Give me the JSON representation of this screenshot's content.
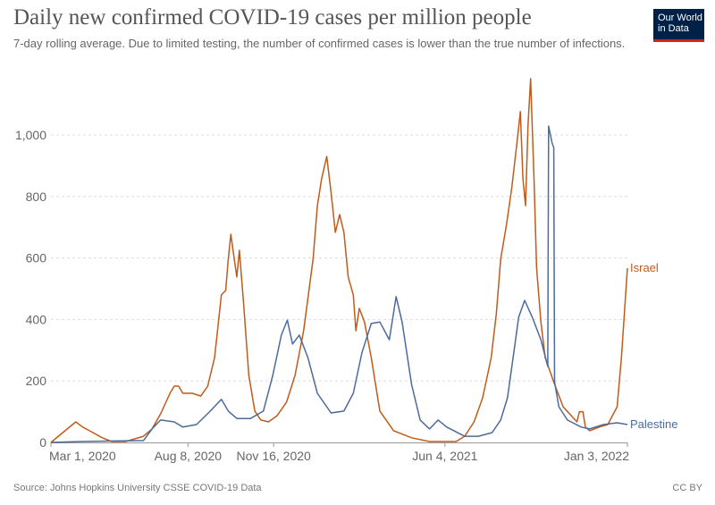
{
  "header": {
    "title": "Daily new confirmed COVID-19 cases per million people",
    "subtitle": "7-day rolling average. Due to limited testing, the number of confirmed cases is lower than the true number of infections."
  },
  "logo": {
    "line1": "Our World",
    "line2": "in Data",
    "colors": {
      "bg": "#002147",
      "bar": "#ce261e"
    }
  },
  "footer": {
    "source": "Source: Johns Hopkins University CSSE COVID-19 Data",
    "license": "CC BY"
  },
  "chart_data": {
    "type": "line",
    "title": "Daily new confirmed COVID-19 cases per million people",
    "xlim": [
      "2020-03-01",
      "2022-01-03"
    ],
    "ylim": [
      0,
      1200
    ],
    "x_ticks": [
      {
        "date": "2020-03-01",
        "label": "Mar 1, 2020"
      },
      {
        "date": "2020-08-08",
        "label": "Aug 8, 2020"
      },
      {
        "date": "2020-11-16",
        "label": "Nov 16, 2020"
      },
      {
        "date": "2021-06-04",
        "label": "Jun 4, 2021"
      },
      {
        "date": "2022-01-03",
        "label": "Jan 3, 2022"
      }
    ],
    "y_ticks": [
      {
        "value": 0,
        "label": "0"
      },
      {
        "value": 200,
        "label": "200"
      },
      {
        "value": 400,
        "label": "400"
      },
      {
        "value": 600,
        "label": "600"
      },
      {
        "value": 800,
        "label": "800"
      },
      {
        "value": 1000,
        "label": "1,000"
      }
    ],
    "grid": true,
    "legend": "inline labels at line ends",
    "series": [
      {
        "name": "Israel",
        "color": "#c15b1a",
        "points": [
          [
            "2020-03-01",
            0
          ],
          [
            "2020-03-30",
            67
          ],
          [
            "2020-04-07",
            50
          ],
          [
            "2020-04-15",
            38
          ],
          [
            "2020-04-30",
            15
          ],
          [
            "2020-05-11",
            3
          ],
          [
            "2020-05-27",
            3
          ],
          [
            "2020-06-17",
            20
          ],
          [
            "2020-06-27",
            44
          ],
          [
            "2020-07-07",
            93
          ],
          [
            "2020-07-18",
            160
          ],
          [
            "2020-07-23",
            183
          ],
          [
            "2020-07-28",
            183
          ],
          [
            "2020-08-02",
            160
          ],
          [
            "2020-08-13",
            160
          ],
          [
            "2020-08-23",
            151
          ],
          [
            "2020-08-31",
            183
          ],
          [
            "2020-09-08",
            276
          ],
          [
            "2020-09-16",
            480
          ],
          [
            "2020-09-21",
            494
          ],
          [
            "2020-09-24",
            596
          ],
          [
            "2020-09-27",
            677
          ],
          [
            "2020-10-01",
            596
          ],
          [
            "2020-10-04",
            538
          ],
          [
            "2020-10-07",
            625
          ],
          [
            "2020-10-12",
            450
          ],
          [
            "2020-10-18",
            218
          ],
          [
            "2020-10-25",
            102
          ],
          [
            "2020-11-01",
            73
          ],
          [
            "2020-11-10",
            67
          ],
          [
            "2020-11-20",
            87
          ],
          [
            "2020-12-01",
            131
          ],
          [
            "2020-12-11",
            218
          ],
          [
            "2020-12-21",
            363
          ],
          [
            "2021-01-01",
            596
          ],
          [
            "2021-01-06",
            770
          ],
          [
            "2021-01-11",
            858
          ],
          [
            "2021-01-17",
            930
          ],
          [
            "2021-01-22",
            814
          ],
          [
            "2021-01-27",
            683
          ],
          [
            "2021-02-01",
            741
          ],
          [
            "2021-02-06",
            683
          ],
          [
            "2021-02-11",
            538
          ],
          [
            "2021-02-17",
            480
          ],
          [
            "2021-02-20",
            363
          ],
          [
            "2021-02-24",
            436
          ],
          [
            "2021-03-02",
            392
          ],
          [
            "2021-03-10",
            276
          ],
          [
            "2021-03-20",
            102
          ],
          [
            "2021-04-05",
            38
          ],
          [
            "2021-04-26",
            15
          ],
          [
            "2021-05-17",
            3
          ],
          [
            "2021-06-17",
            3
          ],
          [
            "2021-06-27",
            20
          ],
          [
            "2021-07-08",
            67
          ],
          [
            "2021-07-18",
            145
          ],
          [
            "2021-07-28",
            276
          ],
          [
            "2021-08-03",
            421
          ],
          [
            "2021-08-08",
            596
          ],
          [
            "2021-08-15",
            712
          ],
          [
            "2021-08-21",
            828
          ],
          [
            "2021-08-24",
            901
          ],
          [
            "2021-08-27",
            974
          ],
          [
            "2021-08-31",
            1076
          ],
          [
            "2021-09-03",
            858
          ],
          [
            "2021-09-06",
            770
          ],
          [
            "2021-09-09",
            1032
          ],
          [
            "2021-09-12",
            1183
          ],
          [
            "2021-09-16",
            858
          ],
          [
            "2021-09-19",
            567
          ],
          [
            "2021-09-24",
            392
          ],
          [
            "2021-09-29",
            276
          ],
          [
            "2021-10-10",
            189
          ],
          [
            "2021-10-20",
            116
          ],
          [
            "2021-11-05",
            67
          ],
          [
            "2021-11-08",
            100
          ],
          [
            "2021-11-12",
            100
          ],
          [
            "2021-11-15",
            50
          ],
          [
            "2021-11-20",
            38
          ],
          [
            "2021-12-01",
            50
          ],
          [
            "2021-12-11",
            58
          ],
          [
            "2021-12-22",
            116
          ],
          [
            "2021-12-27",
            276
          ],
          [
            "2022-01-03",
            567
          ]
        ]
      },
      {
        "name": "Palestine",
        "color": "#4c6a9c",
        "points": [
          [
            "2020-03-01",
            0
          ],
          [
            "2020-04-04",
            3
          ],
          [
            "2020-06-17",
            6
          ],
          [
            "2020-06-27",
            44
          ],
          [
            "2020-07-07",
            73
          ],
          [
            "2020-07-23",
            67
          ],
          [
            "2020-08-02",
            50
          ],
          [
            "2020-08-18",
            58
          ],
          [
            "2020-09-03",
            102
          ],
          [
            "2020-09-16",
            140
          ],
          [
            "2020-09-24",
            102
          ],
          [
            "2020-10-04",
            78
          ],
          [
            "2020-10-20",
            78
          ],
          [
            "2020-11-04",
            102
          ],
          [
            "2020-11-15",
            218
          ],
          [
            "2020-11-25",
            349
          ],
          [
            "2020-12-02",
            398
          ],
          [
            "2020-12-08",
            320
          ],
          [
            "2020-12-16",
            349
          ],
          [
            "2020-12-26",
            276
          ],
          [
            "2021-01-06",
            160
          ],
          [
            "2021-01-22",
            96
          ],
          [
            "2021-02-06",
            102
          ],
          [
            "2021-02-17",
            160
          ],
          [
            "2021-02-27",
            291
          ],
          [
            "2021-03-10",
            387
          ],
          [
            "2021-03-20",
            392
          ],
          [
            "2021-03-31",
            334
          ],
          [
            "2021-04-08",
            474
          ],
          [
            "2021-04-15",
            392
          ],
          [
            "2021-04-26",
            189
          ],
          [
            "2021-05-06",
            73
          ],
          [
            "2021-05-17",
            44
          ],
          [
            "2021-05-27",
            73
          ],
          [
            "2021-06-06",
            50
          ],
          [
            "2021-06-27",
            20
          ],
          [
            "2021-07-13",
            20
          ],
          [
            "2021-07-29",
            32
          ],
          [
            "2021-08-08",
            73
          ],
          [
            "2021-08-16",
            145
          ],
          [
            "2021-08-24",
            305
          ],
          [
            "2021-08-29",
            407
          ],
          [
            "2021-09-05",
            462
          ],
          [
            "2021-09-14",
            407
          ],
          [
            "2021-09-24",
            334
          ],
          [
            "2021-10-02",
            247
          ],
          [
            "2021-10-03",
            1029
          ],
          [
            "2021-10-07",
            974
          ],
          [
            "2021-10-09",
            959
          ],
          [
            "2021-10-10",
            197
          ],
          [
            "2021-10-15",
            116
          ],
          [
            "2021-10-25",
            73
          ],
          [
            "2021-11-10",
            50
          ],
          [
            "2021-11-20",
            44
          ],
          [
            "2021-12-06",
            58
          ],
          [
            "2021-12-22",
            64
          ],
          [
            "2022-01-03",
            58
          ]
        ]
      }
    ]
  }
}
